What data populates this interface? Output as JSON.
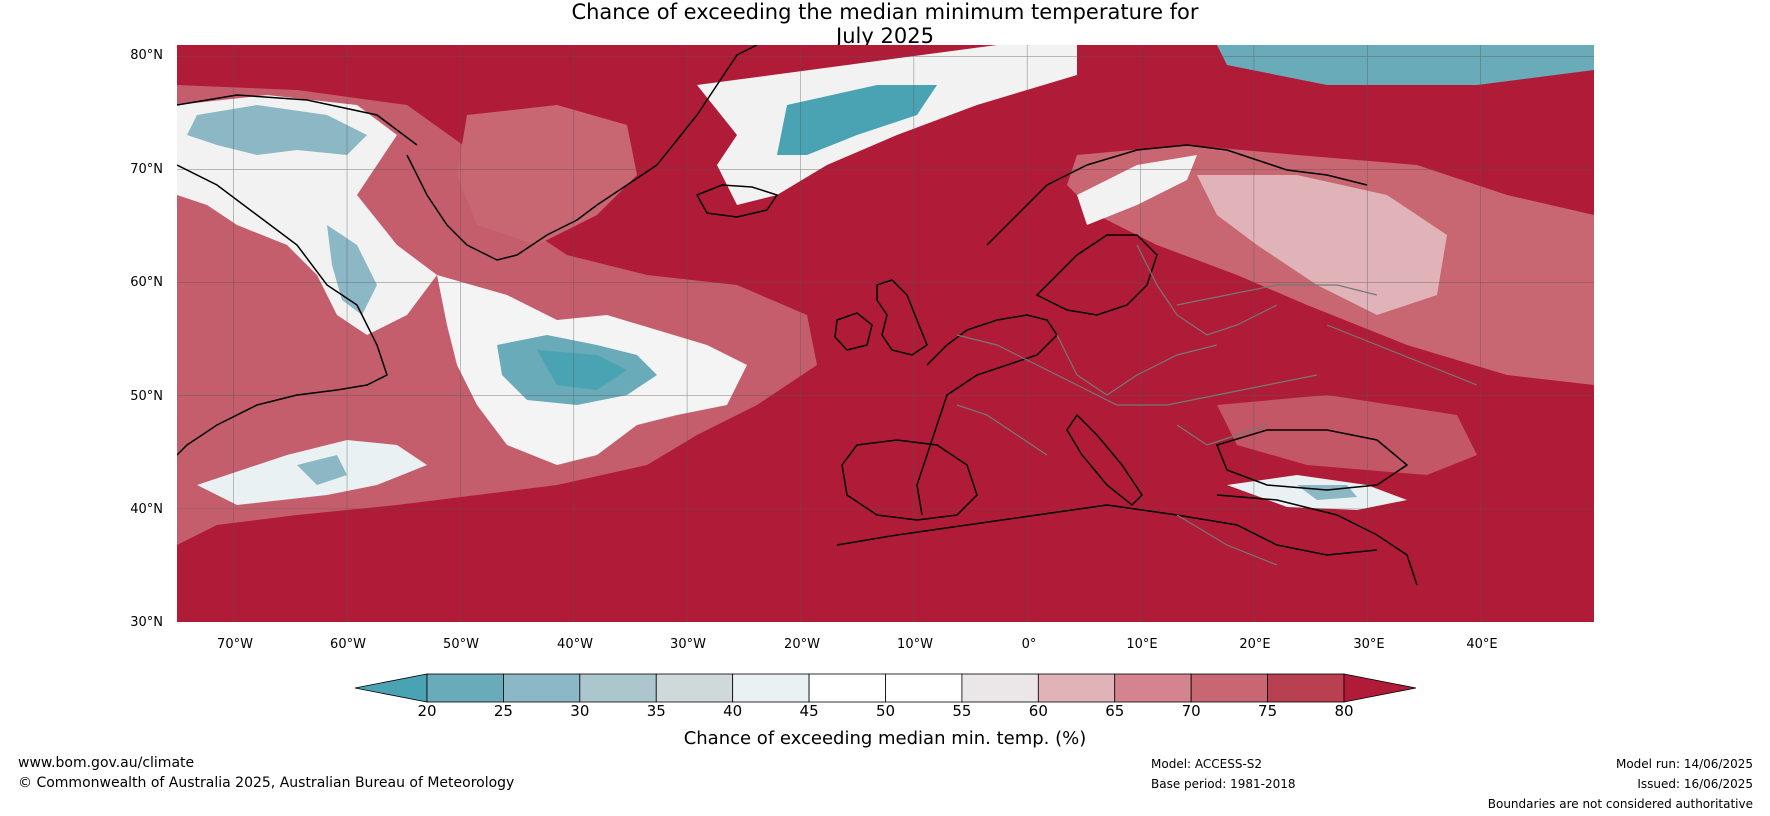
{
  "title": {
    "line1": "Chance of exceeding the median minimum temperature for",
    "line2": "July 2025"
  },
  "map": {
    "lat_labels": [
      "80°N",
      "70°N",
      "60°N",
      "50°N",
      "40°N",
      "30°N"
    ],
    "lon_labels": [
      "70°W",
      "60°W",
      "50°W",
      "40°W",
      "30°W",
      "20°W",
      "10°W",
      "0°",
      "10°E",
      "20°E",
      "30°E",
      "40°E"
    ],
    "lon_range": [
      -75,
      50
    ],
    "lat_range": [
      30,
      81
    ],
    "dominant_color": "#b01c37"
  },
  "colorbar": {
    "ticks": [
      "20",
      "25",
      "30",
      "35",
      "40",
      "45",
      "50",
      "55",
      "60",
      "65",
      "70",
      "75",
      "80"
    ],
    "colors": [
      "#4aa3b3",
      "#6aabb9",
      "#8bb8c4",
      "#acc6cd",
      "#d0d9da",
      "#e9f1f2",
      "#ffffff",
      "#ffffff",
      "#ebe6e7",
      "#e0b3b9",
      "#d4848f",
      "#c86672",
      "#b94050",
      "#b01c37"
    ],
    "label": "Chance of exceeding median min. temp. (%)"
  },
  "footer": {
    "website": "www.bom.gov.au/climate",
    "copyright": "© Commonwealth of Australia 2025, Australian Bureau of Meteorology",
    "model": "Model: ACCESS-S2",
    "base_period": "Base period: 1981-2018",
    "model_run": "Model run: 14/06/2025",
    "issued": "Issued: 16/06/2025",
    "boundaries": "Boundaries are not considered authoritative"
  }
}
